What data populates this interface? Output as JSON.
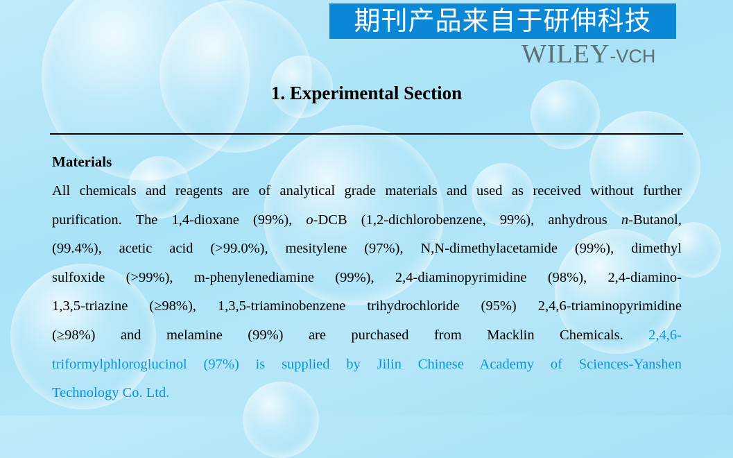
{
  "banner": {
    "text": "期刊产品来自于研伸科技",
    "color": "#0a88d6"
  },
  "logo": {
    "main": "WILEY",
    "suffix": "-VCH"
  },
  "slide": {
    "title": "1. Experimental Section",
    "section_heading": "Materials"
  },
  "paragraph": {
    "lines": [
      [
        {
          "t": "All chemicals and reagents are of analytical grade materials and used as received without further",
          "c": "black"
        }
      ],
      [
        {
          "t": "purification. The 1,4-dioxane (99%), ",
          "c": "black"
        },
        {
          "t": "o",
          "c": "black",
          "i": true
        },
        {
          "t": "-DCB (1,2-dichlorobenzene, 99%), anhydrous ",
          "c": "black"
        },
        {
          "t": "n",
          "c": "black",
          "i": true
        },
        {
          "t": "-Butanol,",
          "c": "black"
        }
      ],
      [
        {
          "t": "(99.4%), acetic acid (>99.0%), mesitylene (97%), N,N-dimethylacetamide (99%), dimethyl",
          "c": "black"
        }
      ],
      [
        {
          "t": "sulfoxide (>99%), m-phenylenediamine (99%), 2,4-diaminopyrimidine (98%), 2,4-diamino-",
          "c": "black"
        }
      ],
      [
        {
          "t": "1,3,5-triazine (≥98%), 1,3,5-triaminobenzene trihydrochloride (95%) 2,4,6-triaminopyrimidine",
          "c": "black"
        }
      ],
      [
        {
          "t": "(≥98%) and melamine (99%) are purchased from Macklin Chemicals. ",
          "c": "black"
        },
        {
          "t": "2,4,6-",
          "c": "blue"
        }
      ],
      [
        {
          "t": "triformylphloroglucinol (97%) is supplied by Jilin Chinese Academy of Sciences-Yanshen",
          "c": "blue"
        }
      ],
      [
        {
          "t": "Technology Co. Ltd.",
          "c": "blue"
        }
      ]
    ],
    "highlight_color": "#0a93dc"
  }
}
